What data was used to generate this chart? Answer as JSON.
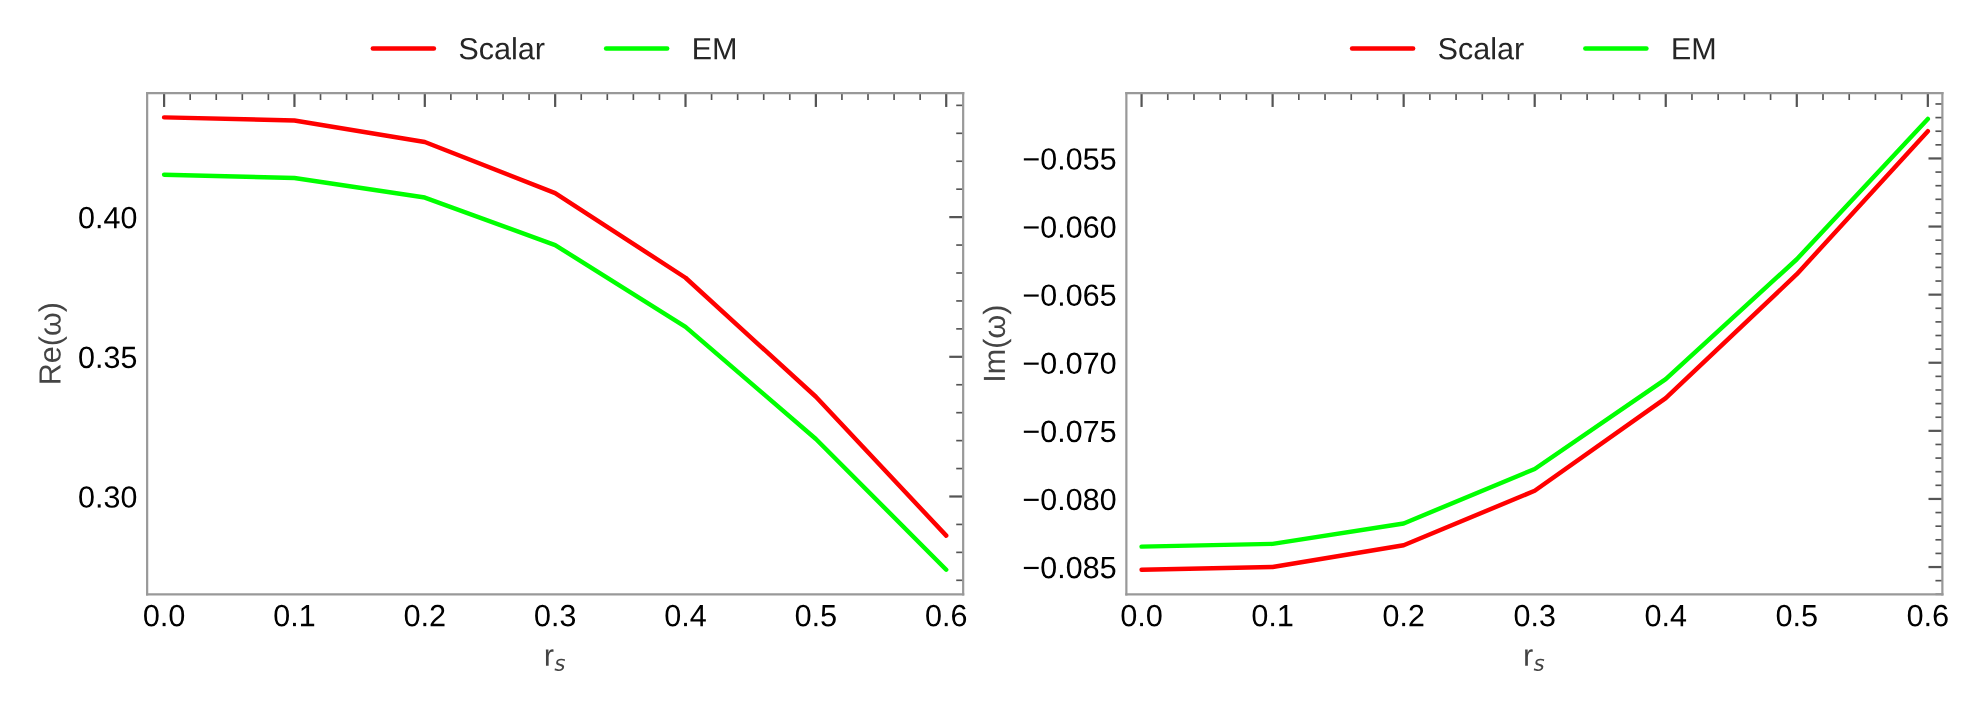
{
  "chart_data": [
    {
      "type": "line",
      "xlabel": "r$_{s}$",
      "ylabel": "Re(ω)",
      "x": [
        0.0,
        0.1,
        0.2,
        0.3,
        0.4,
        0.5,
        0.6
      ],
      "series": [
        {
          "name": "Scalar",
          "color": "#ff0000",
          "values": [
            0.4357,
            0.4346,
            0.4269,
            0.4086,
            0.3783,
            0.3357,
            0.286
          ]
        },
        {
          "name": "EM",
          "color": "#00ff00",
          "values": [
            0.4152,
            0.414,
            0.407,
            0.39,
            0.3607,
            0.3206,
            0.2738
          ]
        }
      ],
      "xlim": [
        -0.013,
        0.613
      ],
      "ylim": [
        0.265,
        0.4444
      ],
      "xticks": [
        {
          "value": 0.0,
          "label": "0.0"
        },
        0.1,
        0.2,
        0.3,
        0.4,
        0.5,
        0.6
      ],
      "yticks": [
        {
          "value": 0.3,
          "label": "0.30"
        },
        0.35,
        {
          "value": 0.4,
          "label": "0.40"
        }
      ],
      "legend": "top",
      "grid": false,
      "marker": "none",
      "line_style": "solid"
    },
    {
      "type": "line",
      "xlabel": "r$_{s}$",
      "ylabel": "Im(ω)",
      "x": [
        0.0,
        0.1,
        0.2,
        0.3,
        0.4,
        0.5,
        0.6
      ],
      "series": [
        {
          "name": "Scalar",
          "color": "#ff0000",
          "values": [
            -0.0852,
            -0.085,
            -0.0834,
            -0.0794,
            -0.0726,
            -0.0635,
            -0.053
          ]
        },
        {
          "name": "EM",
          "color": "#00ff00",
          "values": [
            -0.0835,
            -0.0833,
            -0.0818,
            -0.0778,
            -0.0712,
            -0.0624,
            -0.0521
          ]
        }
      ],
      "xlim": [
        -0.0116,
        0.6111
      ],
      "ylim": [
        -0.087,
        -0.0502
      ],
      "xticks": [
        {
          "value": 0.0,
          "label": "0.0"
        },
        0.1,
        0.2,
        0.3,
        0.4,
        0.5,
        0.6
      ],
      "yticks": [
        {
          "value": -0.085,
          "label": "−0.085"
        },
        {
          "value": -0.08,
          "label": "−0.080"
        },
        {
          "value": -0.075,
          "label": "−0.075"
        },
        {
          "value": -0.07,
          "label": "−0.070"
        },
        {
          "value": -0.065,
          "label": "−0.065"
        },
        {
          "value": -0.06,
          "label": "−0.060"
        },
        {
          "value": -0.055,
          "label": "−0.055"
        }
      ],
      "legend": "top",
      "grid": false,
      "marker": "none",
      "line_style": "solid"
    }
  ]
}
